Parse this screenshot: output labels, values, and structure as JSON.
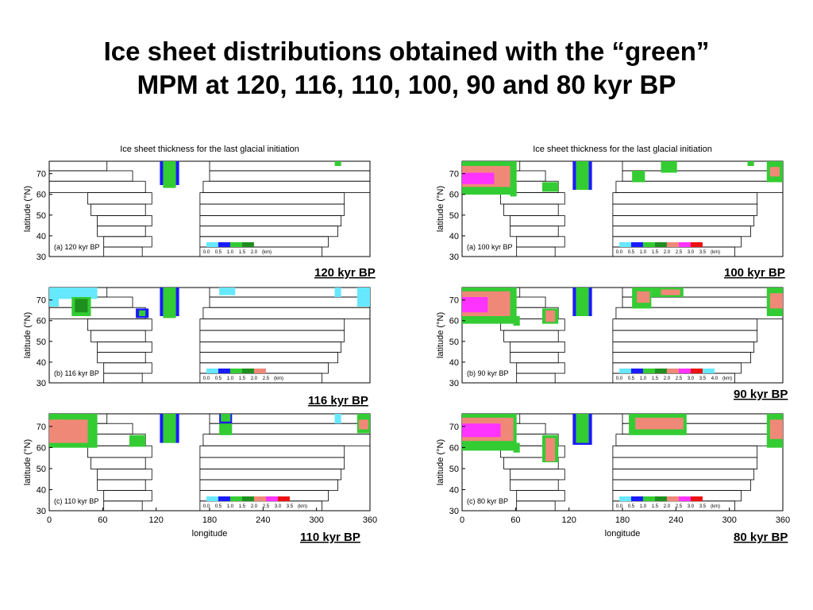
{
  "title": {
    "line1": "Ice sheet distributions obtained with the “green”",
    "line2": "MPM at 120, 116, 110, 100, 90 and 80 kyr BP"
  },
  "chart_data": [
    {
      "type": "heatmap",
      "panel_label": "(a) 120 kyr BP",
      "caption": "120 kyr BP",
      "subtitle": "Ice sheet thickness for the last glacial initiation",
      "ylabel": "latitude (°N)",
      "xlabel": "",
      "yticks": [
        30,
        40,
        50,
        60,
        70
      ],
      "xticks": [],
      "xlim": [
        0,
        360
      ],
      "ylim": [
        30,
        76
      ],
      "colorbar_labels": [
        "0.0",
        "0.5",
        "1.0",
        "1.5",
        "2.0"
      ],
      "colorbar_unit": "(km)"
    },
    {
      "type": "heatmap",
      "panel_label": "(b) 116 kyr BP",
      "caption": "116 kyr BP",
      "subtitle": "",
      "ylabel": "latitude (°N)",
      "xlabel": "",
      "yticks": [
        30,
        40,
        50,
        60,
        70
      ],
      "xticks": [],
      "xlim": [
        0,
        360
      ],
      "ylim": [
        30,
        76
      ],
      "colorbar_labels": [
        "0.0",
        "0.5",
        "1.0",
        "1.5",
        "2.0",
        "2.5"
      ],
      "colorbar_unit": "(km)"
    },
    {
      "type": "heatmap",
      "panel_label": "(c) 110 kyr BP",
      "caption": "110 kyr BP",
      "subtitle": "",
      "ylabel": "latitude (°N)",
      "xlabel": "longitude",
      "yticks": [
        30,
        40,
        50,
        60,
        70
      ],
      "xticks": [
        0,
        60,
        120,
        180,
        240,
        300,
        360
      ],
      "xlim": [
        0,
        360
      ],
      "ylim": [
        30,
        76
      ],
      "colorbar_labels": [
        "0.0",
        "0.5",
        "1.0",
        "1.5",
        "2.0",
        "2.5",
        "3.0",
        "3.5"
      ],
      "colorbar_unit": "(km)"
    },
    {
      "type": "heatmap",
      "panel_label": "(a) 100 kyr BP",
      "caption": "100 kyr BP",
      "subtitle": "Ice sheet thickness for the last glacial initiation",
      "ylabel": "latitude (°N)",
      "xlabel": "",
      "yticks": [
        30,
        40,
        50,
        60,
        70
      ],
      "xticks": [],
      "xlim": [
        0,
        360
      ],
      "ylim": [
        30,
        76
      ],
      "colorbar_labels": [
        "0.0",
        "0.5",
        "1.0",
        "1.5",
        "2.0",
        "2.5",
        "3.0",
        "3.5"
      ],
      "colorbar_unit": "(km)"
    },
    {
      "type": "heatmap",
      "panel_label": "(b) 90 kyr BP",
      "caption": "90 kyr BP",
      "subtitle": "",
      "ylabel": "latitude (°N)",
      "xlabel": "",
      "yticks": [
        30,
        40,
        50,
        60,
        70
      ],
      "xticks": [],
      "xlim": [
        0,
        360
      ],
      "ylim": [
        30,
        76
      ],
      "colorbar_labels": [
        "0.0",
        "0.5",
        "1.0",
        "1.5",
        "2.0",
        "2.5",
        "3.0",
        "3.5",
        "4.0"
      ],
      "colorbar_unit": "(km)"
    },
    {
      "type": "heatmap",
      "panel_label": "(c) 80 kyr BP",
      "caption": "80 kyr BP",
      "subtitle": "",
      "ylabel": "latitude (°N)",
      "xlabel": "longitude",
      "yticks": [
        30,
        40,
        50,
        60,
        70
      ],
      "xticks": [
        0,
        60,
        120,
        180,
        240,
        300,
        360
      ],
      "xlim": [
        0,
        360
      ],
      "ylim": [
        30,
        76
      ],
      "colorbar_labels": [
        "0.0",
        "0.5",
        "1.0",
        "1.5",
        "2.0",
        "2.5",
        "3.0",
        "3.5"
      ],
      "colorbar_unit": "(km)"
    }
  ],
  "colors": {
    "thickness_levels": [
      "#66e8ff",
      "#1a1aff",
      "#33cc33",
      "#1e8f1e",
      "#f08878",
      "#ff33ff",
      "#ee1111"
    ]
  }
}
